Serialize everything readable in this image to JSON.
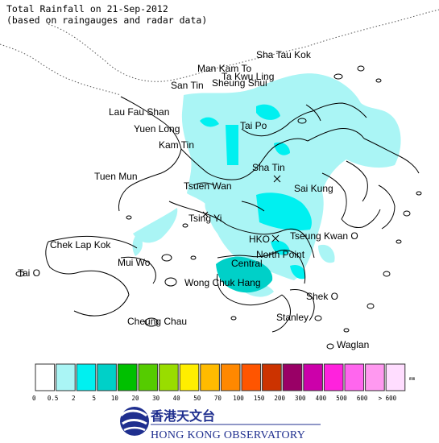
{
  "title": {
    "line1": "Total Rainfall on 21-Sep-2012",
    "line2": "(based on raingauges and radar data)"
  },
  "places": [
    "Sha Tau Kok",
    "Man Kam To",
    "Ta Kwu Ling",
    "San Tin",
    "Sheung Shui",
    "Lau Fau Shan",
    "Yuen Long",
    "Tai Po",
    "Kam Tin",
    "Tuen Mun",
    "Sha Tin",
    "Tsuen Wan",
    "Sai Kung",
    "Tsing Yi",
    "HKO",
    "Tseung Kwan O",
    "Chek Lap Kok",
    "North Point",
    "Central",
    "Mui Wo",
    "Tai O",
    "Wong Chuk Hang",
    "Shek O",
    "Cheung Chau",
    "Stanley",
    "Waglan"
  ],
  "legend": {
    "thresholds": [
      "0",
      "0.5",
      "2",
      "5",
      "10",
      "20",
      "30",
      "40",
      "50",
      "70",
      "100",
      "150",
      "200",
      "300",
      "400",
      "500",
      "600",
      "> 600"
    ],
    "unit": "mm",
    "colors": [
      "#ffffff",
      "#aaf5f5",
      "#00f0f0",
      "#00d0c8",
      "#00c000",
      "#55cc00",
      "#99dd00",
      "#ffee00",
      "#ffbb00",
      "#ff8800",
      "#ff5500",
      "#cc3300",
      "#990066",
      "#cc00aa",
      "#ff22dd",
      "#ff66ee",
      "#ff99f0",
      "#ffddff"
    ]
  },
  "footer": {
    "org_chinese": "香港天文台",
    "org_english": "HONG KONG OBSERVATORY"
  },
  "colors": {
    "rain_light": "#aaf5f5",
    "rain_mid": "#00f0f0",
    "rain_heavy": "#00d0c8",
    "coast": "#000000",
    "logo": "#1f2f8f"
  }
}
